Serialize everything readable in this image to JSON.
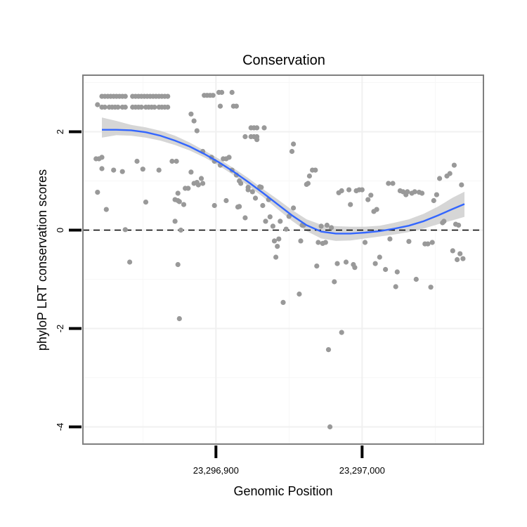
{
  "chart_data": {
    "type": "scatter",
    "title": "Conservation",
    "xlabel": "Genomic Position",
    "ylabel": "phyloP LRT conservation scores",
    "xlim": [
      23296809,
      23297083
    ],
    "ylim": [
      -4.35,
      3.15
    ],
    "x_ticks": [
      {
        "value": 23296900,
        "label": "23,296,900"
      },
      {
        "value": 23297000,
        "label": "23,297,000"
      }
    ],
    "y_ticks": [
      {
        "value": -4,
        "label": "-4"
      },
      {
        "value": -2,
        "label": "-2"
      },
      {
        "value": 0,
        "label": "0"
      },
      {
        "value": 2,
        "label": "2"
      }
    ],
    "x_minor_grid": [
      23296850,
      23296950,
      23297050
    ],
    "y_minor_grid": [
      -3,
      -1,
      1,
      3
    ],
    "grid": true,
    "reference_line": {
      "y": 0,
      "style": "dashed",
      "color": "#000000"
    },
    "colors": {
      "points": "#999999",
      "smooth": "#3366FF",
      "ribbon": "#CCCCCC",
      "border": "#7F7F7F"
    },
    "points": [
      {
        "x": 23296822,
        "y": 2.72
      },
      {
        "x": 23296824,
        "y": 2.72
      },
      {
        "x": 23296826,
        "y": 2.72
      },
      {
        "x": 23296828,
        "y": 2.72
      },
      {
        "x": 23296830,
        "y": 2.72
      },
      {
        "x": 23296832,
        "y": 2.72
      },
      {
        "x": 23296834,
        "y": 2.72
      },
      {
        "x": 23296836,
        "y": 2.72
      },
      {
        "x": 23296838,
        "y": 2.72
      },
      {
        "x": 23296843,
        "y": 2.72
      },
      {
        "x": 23296845,
        "y": 2.72
      },
      {
        "x": 23296847,
        "y": 2.72
      },
      {
        "x": 23296849,
        "y": 2.72
      },
      {
        "x": 23296851,
        "y": 2.72
      },
      {
        "x": 23296853,
        "y": 2.72
      },
      {
        "x": 23296855,
        "y": 2.72
      },
      {
        "x": 23296857,
        "y": 2.72
      },
      {
        "x": 23296859,
        "y": 2.72
      },
      {
        "x": 23296861,
        "y": 2.72
      },
      {
        "x": 23296863,
        "y": 2.72
      },
      {
        "x": 23296865,
        "y": 2.72
      },
      {
        "x": 23296867,
        "y": 2.72
      },
      {
        "x": 23296822,
        "y": 2.5
      },
      {
        "x": 23296824,
        "y": 2.5
      },
      {
        "x": 23296827,
        "y": 2.5
      },
      {
        "x": 23296829,
        "y": 2.5
      },
      {
        "x": 23296831,
        "y": 2.5
      },
      {
        "x": 23296833,
        "y": 2.5
      },
      {
        "x": 23296836,
        "y": 2.5
      },
      {
        "x": 23296838,
        "y": 2.5
      },
      {
        "x": 23296843,
        "y": 2.5
      },
      {
        "x": 23296845,
        "y": 2.5
      },
      {
        "x": 23296847,
        "y": 2.5
      },
      {
        "x": 23296849,
        "y": 2.5
      },
      {
        "x": 23296852,
        "y": 2.5
      },
      {
        "x": 23296854,
        "y": 2.5
      },
      {
        "x": 23296856,
        "y": 2.5
      },
      {
        "x": 23296858,
        "y": 2.5
      },
      {
        "x": 23296861,
        "y": 2.5
      },
      {
        "x": 23296863,
        "y": 2.5
      },
      {
        "x": 23296865,
        "y": 2.5
      },
      {
        "x": 23296867,
        "y": 2.5
      },
      {
        "x": 23296892,
        "y": 2.74
      },
      {
        "x": 23296894,
        "y": 2.74
      },
      {
        "x": 23296896,
        "y": 2.74
      },
      {
        "x": 23296898,
        "y": 2.74
      },
      {
        "x": 23296902,
        "y": 2.8
      },
      {
        "x": 23296904,
        "y": 2.8
      },
      {
        "x": 23296911,
        "y": 2.8
      },
      {
        "x": 23296903,
        "y": 2.52
      },
      {
        "x": 23296912,
        "y": 2.52
      },
      {
        "x": 23296914,
        "y": 2.52
      },
      {
        "x": 23296920,
        "y": 1.9
      },
      {
        "x": 23296924,
        "y": 1.9
      },
      {
        "x": 23296926,
        "y": 1.9
      },
      {
        "x": 23296928,
        "y": 1.9
      },
      {
        "x": 23296924,
        "y": 2.08
      },
      {
        "x": 23296926,
        "y": 2.08
      },
      {
        "x": 23296928,
        "y": 2.08
      },
      {
        "x": 23296933,
        "y": 2.08
      },
      {
        "x": 23296928,
        "y": 1.84
      },
      {
        "x": 23296883,
        "y": 2.36
      },
      {
        "x": 23296885,
        "y": 2.22
      },
      {
        "x": 23296887,
        "y": 2.02
      },
      {
        "x": 23296873,
        "y": 1.4
      },
      {
        "x": 23296891,
        "y": 1.6
      },
      {
        "x": 23296897,
        "y": 1.48
      },
      {
        "x": 23296899,
        "y": 1.4
      },
      {
        "x": 23296903,
        "y": 1.32
      },
      {
        "x": 23296905,
        "y": 1.45
      },
      {
        "x": 23296907,
        "y": 1.45
      },
      {
        "x": 23296909,
        "y": 1.48
      },
      {
        "x": 23296911,
        "y": 1.22
      },
      {
        "x": 23296914,
        "y": 1.12
      },
      {
        "x": 23296916,
        "y": 1.0
      },
      {
        "x": 23296917,
        "y": 0.95
      },
      {
        "x": 23296922,
        "y": 0.87
      },
      {
        "x": 23296925,
        "y": 0.78
      },
      {
        "x": 23296819,
        "y": 2.55
      },
      {
        "x": 23296820,
        "y": 1.45
      },
      {
        "x": 23296818,
        "y": 1.45
      },
      {
        "x": 23296822,
        "y": 1.25
      },
      {
        "x": 23296822,
        "y": 1.48
      },
      {
        "x": 23296830,
        "y": 1.22
      },
      {
        "x": 23296836,
        "y": 1.19
      },
      {
        "x": 23296846,
        "y": 1.4
      },
      {
        "x": 23296850,
        "y": 1.24
      },
      {
        "x": 23296861,
        "y": 1.22
      },
      {
        "x": 23296870,
        "y": 1.4
      },
      {
        "x": 23296883,
        "y": 1.18
      },
      {
        "x": 23296887,
        "y": 0.97
      },
      {
        "x": 23296888,
        "y": 0.92
      },
      {
        "x": 23296891,
        "y": 0.95
      },
      {
        "x": 23296890,
        "y": 1.05
      },
      {
        "x": 23296885,
        "y": 0.95
      },
      {
        "x": 23296879,
        "y": 0.85
      },
      {
        "x": 23296881,
        "y": 0.85
      },
      {
        "x": 23296874,
        "y": 0.75
      },
      {
        "x": 23296872,
        "y": 0.62
      },
      {
        "x": 23296874,
        "y": 0.6
      },
      {
        "x": 23296875,
        "y": 0.58
      },
      {
        "x": 23296878,
        "y": 0.52
      },
      {
        "x": 23296819,
        "y": 0.77
      },
      {
        "x": 23296825,
        "y": 0.42
      },
      {
        "x": 23296852,
        "y": 0.57
      },
      {
        "x": 23296872,
        "y": 0.18
      },
      {
        "x": 23296876,
        "y": 0.0
      },
      {
        "x": 23296874,
        "y": -0.7
      },
      {
        "x": 23296875,
        "y": -1.8
      },
      {
        "x": 23296838,
        "y": 0.01
      },
      {
        "x": 23296841,
        "y": -0.65
      },
      {
        "x": 23296899,
        "y": 0.5
      },
      {
        "x": 23296907,
        "y": 0.6
      },
      {
        "x": 23296915,
        "y": 0.47
      },
      {
        "x": 23296916,
        "y": 0.48
      },
      {
        "x": 23296920,
        "y": 0.25
      },
      {
        "x": 23296922,
        "y": 0.82
      },
      {
        "x": 23296927,
        "y": 0.65
      },
      {
        "x": 23296930,
        "y": 0.88
      },
      {
        "x": 23296931,
        "y": 0.87
      },
      {
        "x": 23296932,
        "y": 0.5
      },
      {
        "x": 23296934,
        "y": 0.18
      },
      {
        "x": 23296936,
        "y": 0.62
      },
      {
        "x": 23296937,
        "y": 0.27
      },
      {
        "x": 23296939,
        "y": 0.08
      },
      {
        "x": 23296940,
        "y": -0.22
      },
      {
        "x": 23296941,
        "y": -0.55
      },
      {
        "x": 23296942,
        "y": -0.33
      },
      {
        "x": 23296943,
        "y": -0.18
      },
      {
        "x": 23296944,
        "y": 0.18
      },
      {
        "x": 23296946,
        "y": -1.47
      },
      {
        "x": 23296948,
        "y": 0.02
      },
      {
        "x": 23296950,
        "y": 0.28
      },
      {
        "x": 23296953,
        "y": 1.75
      },
      {
        "x": 23296952,
        "y": 1.6
      },
      {
        "x": 23296953,
        "y": 0.45
      },
      {
        "x": 23296957,
        "y": -1.3
      },
      {
        "x": 23296958,
        "y": -0.22
      },
      {
        "x": 23296959,
        "y": 0.1
      },
      {
        "x": 23296960,
        "y": 0.1
      },
      {
        "x": 23296962,
        "y": 0.93
      },
      {
        "x": 23296963,
        "y": 0.95
      },
      {
        "x": 23296964,
        "y": 1.1
      },
      {
        "x": 23296966,
        "y": 1.22
      },
      {
        "x": 23296968,
        "y": 1.22
      },
      {
        "x": 23296969,
        "y": -0.73
      },
      {
        "x": 23296970,
        "y": -0.25
      },
      {
        "x": 23296972,
        "y": 0.08
      },
      {
        "x": 23296973,
        "y": -0.27
      },
      {
        "x": 23296975,
        "y": -0.25
      },
      {
        "x": 23296976,
        "y": 0.1
      },
      {
        "x": 23296977,
        "y": -2.43
      },
      {
        "x": 23296978,
        "y": -4.0
      },
      {
        "x": 23296979,
        "y": 0.05
      },
      {
        "x": 23296981,
        "y": -1.05
      },
      {
        "x": 23296983,
        "y": -0.68
      },
      {
        "x": 23296984,
        "y": 0.76
      },
      {
        "x": 23296986,
        "y": 0.8
      },
      {
        "x": 23296986,
        "y": -2.08
      },
      {
        "x": 23296989,
        "y": -0.65
      },
      {
        "x": 23296991,
        "y": 0.82
      },
      {
        "x": 23296992,
        "y": 0.52
      },
      {
        "x": 23296994,
        "y": -0.7
      },
      {
        "x": 23296995,
        "y": -0.76
      },
      {
        "x": 23296996,
        "y": 0.8
      },
      {
        "x": 23296998,
        "y": 0.82
      },
      {
        "x": 23297000,
        "y": 0.82
      },
      {
        "x": 23297002,
        "y": -0.25
      },
      {
        "x": 23297004,
        "y": 0.62
      },
      {
        "x": 23297006,
        "y": 0.71
      },
      {
        "x": 23297008,
        "y": 0.38
      },
      {
        "x": 23297009,
        "y": -0.68
      },
      {
        "x": 23297010,
        "y": 0.42
      },
      {
        "x": 23297012,
        "y": -0.55
      },
      {
        "x": 23297016,
        "y": -0.8
      },
      {
        "x": 23297018,
        "y": 0.95
      },
      {
        "x": 23297019,
        "y": -0.18
      },
      {
        "x": 23297021,
        "y": 0.95
      },
      {
        "x": 23297023,
        "y": -1.15
      },
      {
        "x": 23297024,
        "y": -0.85
      },
      {
        "x": 23297026,
        "y": 0.8
      },
      {
        "x": 23297028,
        "y": 0.78
      },
      {
        "x": 23297030,
        "y": 0.72
      },
      {
        "x": 23297031,
        "y": 0.78
      },
      {
        "x": 23297032,
        "y": -0.23
      },
      {
        "x": 23297034,
        "y": 0.75
      },
      {
        "x": 23297036,
        "y": 0.78
      },
      {
        "x": 23297037,
        "y": -1.0
      },
      {
        "x": 23297039,
        "y": 0.77
      },
      {
        "x": 23297041,
        "y": 0.75
      },
      {
        "x": 23297043,
        "y": -0.28
      },
      {
        "x": 23297045,
        "y": -0.28
      },
      {
        "x": 23297047,
        "y": -1.16
      },
      {
        "x": 23297048,
        "y": -0.25
      },
      {
        "x": 23297049,
        "y": 0.6
      },
      {
        "x": 23297051,
        "y": 0.72
      },
      {
        "x": 23297053,
        "y": 1.05
      },
      {
        "x": 23297055,
        "y": 0.15
      },
      {
        "x": 23297056,
        "y": 0.18
      },
      {
        "x": 23297058,
        "y": 1.1
      },
      {
        "x": 23297060,
        "y": 1.15
      },
      {
        "x": 23297062,
        "y": -0.42
      },
      {
        "x": 23297063,
        "y": 1.32
      },
      {
        "x": 23297064,
        "y": 0.12
      },
      {
        "x": 23297065,
        "y": -0.6
      },
      {
        "x": 23297066,
        "y": 0.1
      },
      {
        "x": 23297067,
        "y": -0.48
      },
      {
        "x": 23297068,
        "y": 0.92
      },
      {
        "x": 23297069,
        "y": -0.58
      }
    ],
    "smooth": {
      "x": [
        23296822,
        23296832,
        23296842,
        23296852,
        23296862,
        23296872,
        23296882,
        23296892,
        23296902,
        23296912,
        23296922,
        23296932,
        23296942,
        23296952,
        23296962,
        23296972,
        23296982,
        23296992,
        23297002,
        23297012,
        23297022,
        23297032,
        23297042,
        23297052,
        23297062,
        23297070
      ],
      "y": [
        2.04,
        2.04,
        2.03,
        1.99,
        1.92,
        1.82,
        1.7,
        1.55,
        1.38,
        1.19,
        0.98,
        0.76,
        0.53,
        0.3,
        0.1,
        -0.03,
        -0.07,
        -0.07,
        -0.05,
        -0.02,
        0.03,
        0.09,
        0.18,
        0.3,
        0.43,
        0.53
      ],
      "lower": [
        1.88,
        1.93,
        1.92,
        1.88,
        1.82,
        1.73,
        1.62,
        1.48,
        1.31,
        1.12,
        0.9,
        0.68,
        0.43,
        0.19,
        -0.02,
        -0.17,
        -0.22,
        -0.21,
        -0.17,
        -0.13,
        -0.09,
        -0.04,
        0.03,
        0.12,
        0.2,
        0.27
      ],
      "upper": [
        2.29,
        2.22,
        2.14,
        2.09,
        2.02,
        1.92,
        1.78,
        1.62,
        1.45,
        1.26,
        1.06,
        0.84,
        0.63,
        0.41,
        0.22,
        0.11,
        0.08,
        0.07,
        0.07,
        0.09,
        0.15,
        0.22,
        0.33,
        0.48,
        0.66,
        0.78
      ]
    }
  }
}
